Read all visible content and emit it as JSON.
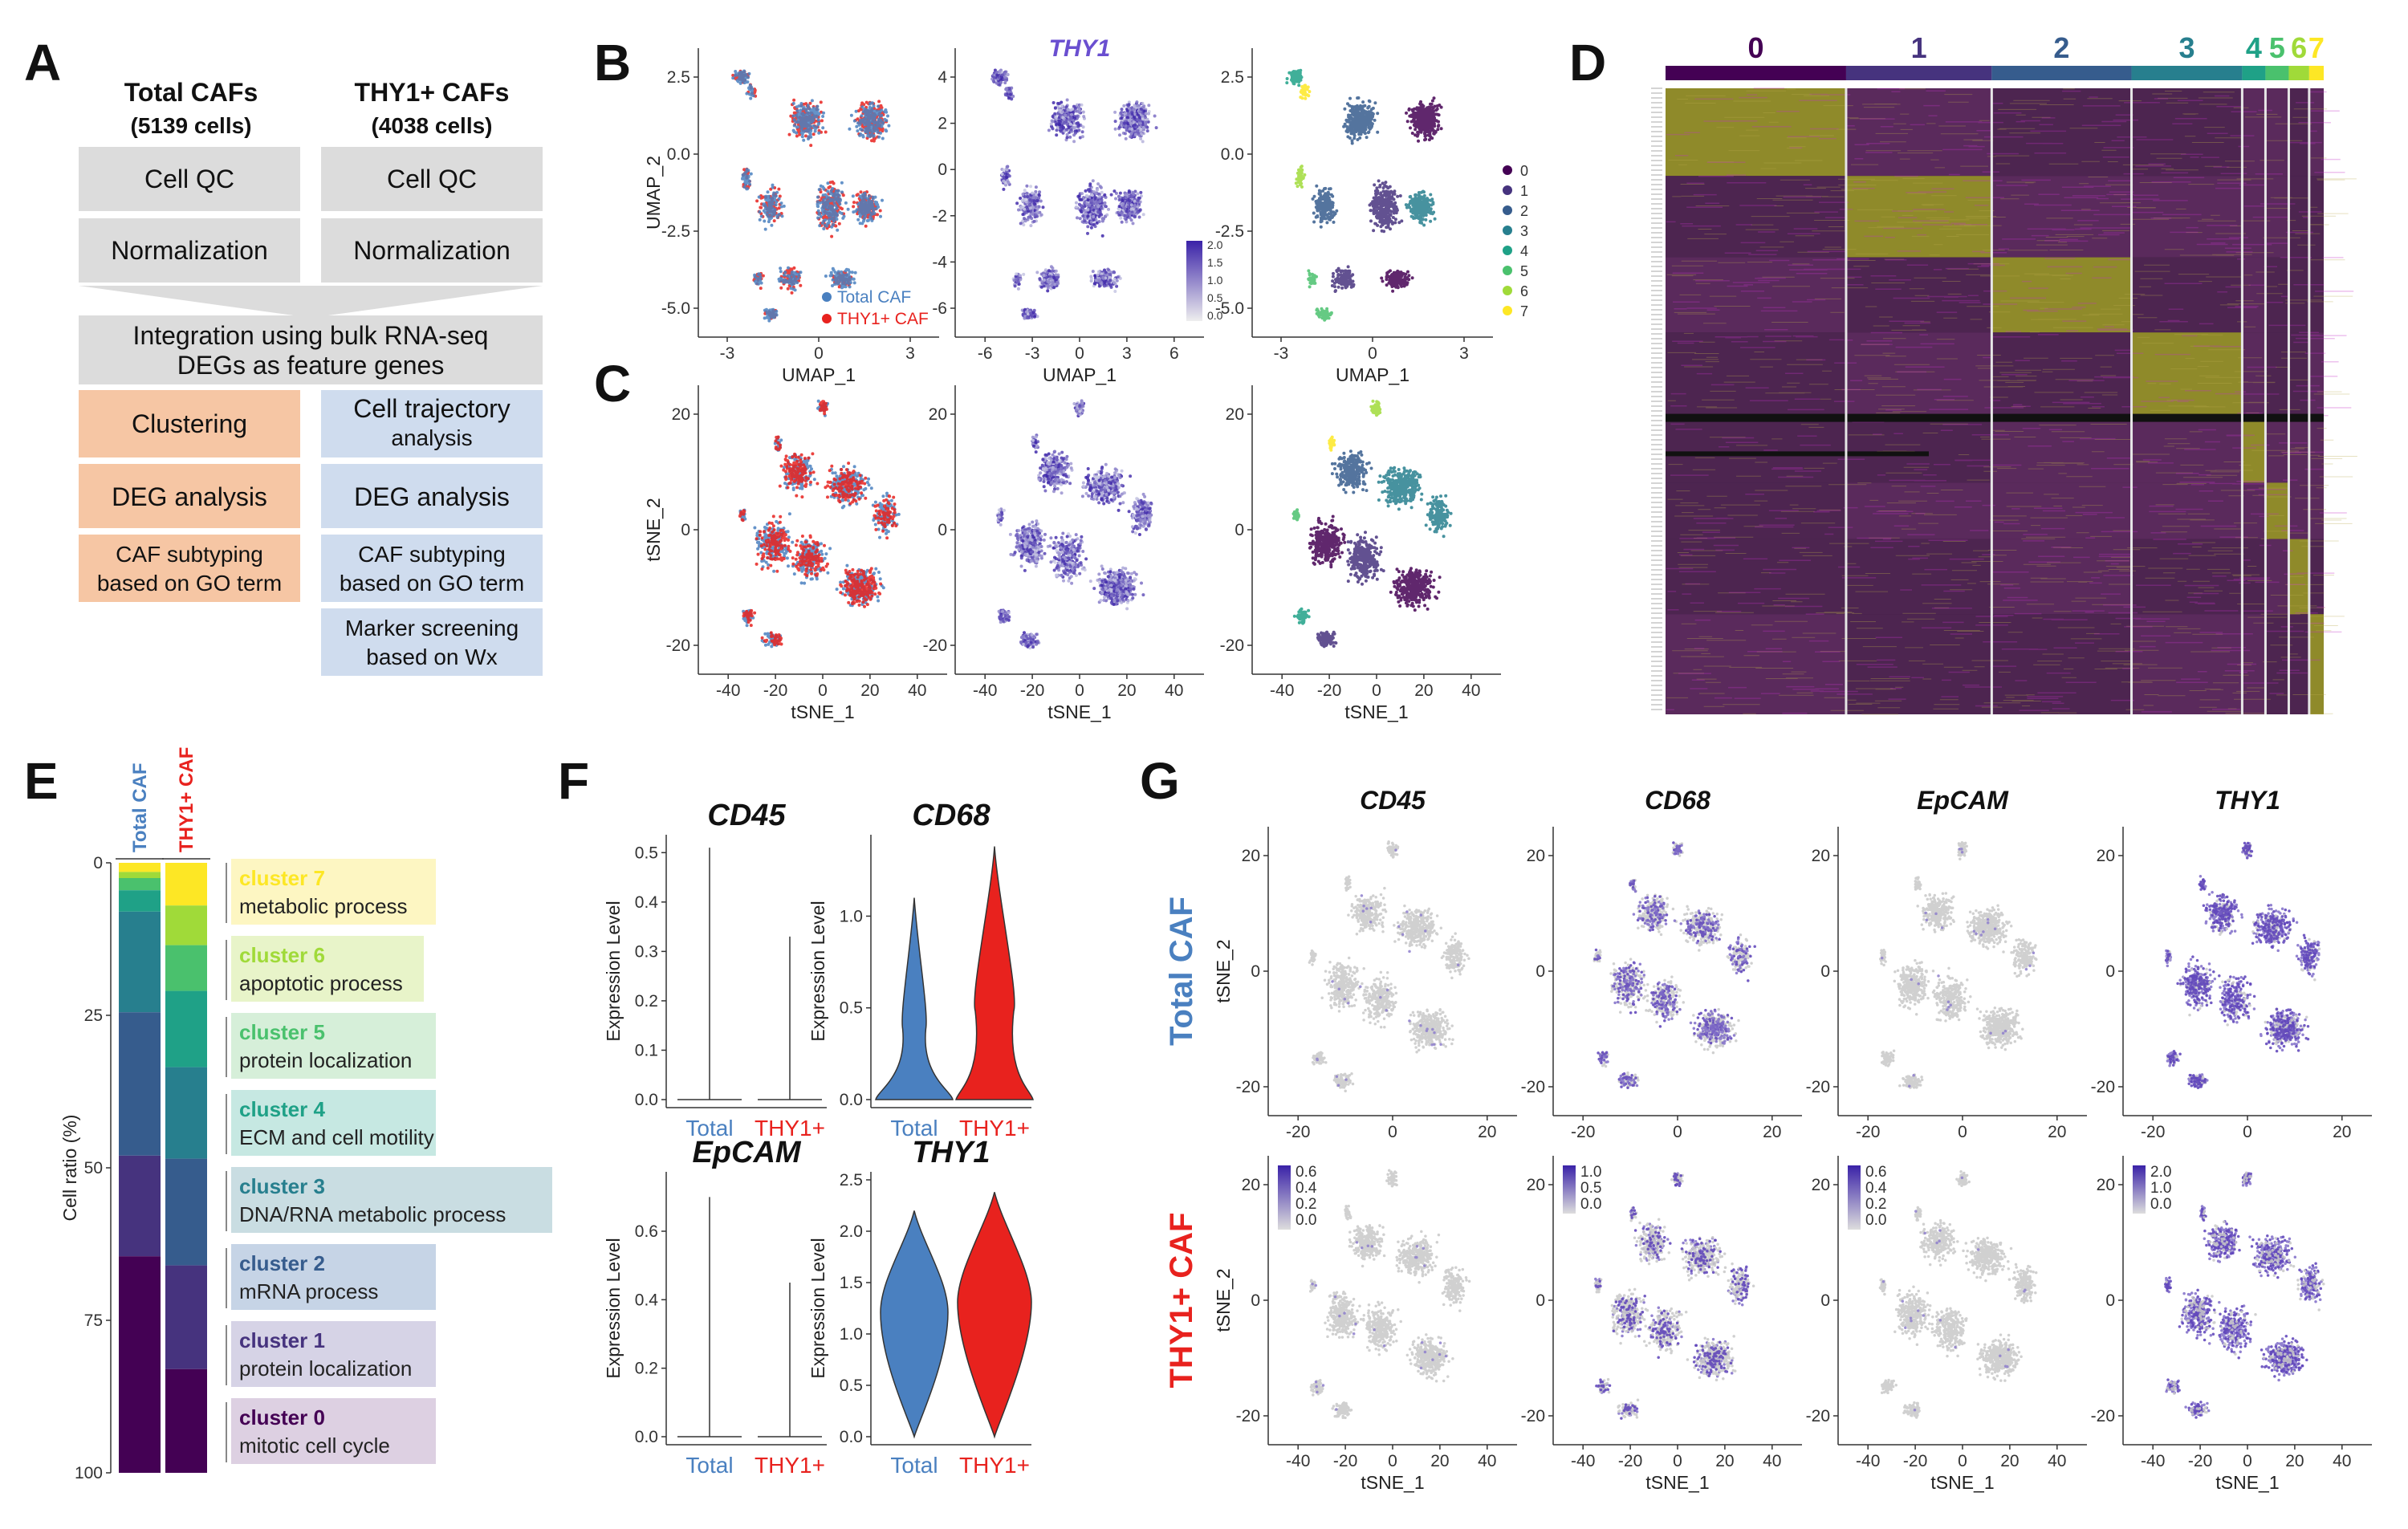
{
  "panel_labels": [
    "A",
    "B",
    "C",
    "D",
    "E",
    "F",
    "G"
  ],
  "workflow": {
    "col1_title": "Total CAFs",
    "col1_cells": "(5139 cells)",
    "col2_title": "THY1+ CAFs",
    "col2_cells": "(4038 cells)",
    "qc": "Cell QC",
    "norm": "Normalization",
    "integ1": "Integration using bulk RNA-seq",
    "integ2": "DEGs as feature genes",
    "clustering": "Clustering",
    "traj1": "Cell trajectory",
    "traj2": "analysis",
    "deg": "DEG analysis",
    "sub1": "CAF subtyping",
    "sub2": "based on GO term",
    "mark1": "Marker screening",
    "mark2": "based on Wx"
  },
  "colors": {
    "total": "#4a80c0",
    "thy1": "#e8221e",
    "feature_low": "#cfd0e6",
    "feature_high": "#3a22a8",
    "clusters": [
      "#440154",
      "#46337e",
      "#365c8d",
      "#277f8e",
      "#1fa187",
      "#4ac16d",
      "#a0da39",
      "#fde725"
    ],
    "orange_box": "#f6c6a4",
    "blue_box": "#cfdcee",
    "grey_box": "#dcdcdc"
  },
  "umap": {
    "xlabel": "UMAP_1",
    "ylabel": "UMAP_2",
    "gene_title": "THY1",
    "legend_total": "Total CAF",
    "legend_thy1": "THY1+ CAF",
    "b1_x": [
      "-3",
      "0",
      "3"
    ],
    "b1_y": [
      "2.5",
      "0.0",
      "-2.5",
      "-5.0"
    ],
    "b2_x": [
      "-6",
      "-3",
      "0",
      "3",
      "6"
    ],
    "b2_y": [
      "4",
      "2",
      "0",
      "-2",
      "-4",
      "-6"
    ],
    "b3_x": [
      "-3",
      "0",
      "3"
    ],
    "b3_y": [
      "2.5",
      "0.0",
      "-2.5",
      "-5.0"
    ],
    "b2_scale": [
      "2.0",
      "1.5",
      "1.0",
      "0.5",
      "0.0"
    ],
    "cluster_names": [
      "0",
      "1",
      "2",
      "3",
      "4",
      "5",
      "6",
      "7"
    ]
  },
  "tsne": {
    "xlabel": "tSNE_1",
    "ylabel": "tSNE_2",
    "x_ticks": [
      "-40",
      "-20",
      "0",
      "20",
      "40"
    ],
    "y_ticks": [
      "20",
      "0",
      "-20"
    ]
  },
  "heatmap": {
    "cluster_labels": [
      "0",
      "1",
      "2",
      "3",
      "4",
      "5",
      "6",
      "7"
    ]
  },
  "chart_data": [
    {
      "type": "bar",
      "title": "",
      "xlabel": "",
      "ylabel": "Cell ratio (%)",
      "ylim": [
        0,
        100
      ],
      "y_ticks": [
        "0",
        "25",
        "50",
        "75",
        "100"
      ],
      "categories": [
        "Total CAF",
        "THY1+ CAF"
      ],
      "series": [
        {
          "name": "cluster 0",
          "values": [
            35.5,
            17.0
          ]
        },
        {
          "name": "cluster 1",
          "values": [
            16.5,
            17.0
          ]
        },
        {
          "name": "cluster 2",
          "values": [
            23.5,
            17.5
          ]
        },
        {
          "name": "cluster 3",
          "values": [
            16.5,
            15.0
          ]
        },
        {
          "name": "cluster 4",
          "values": [
            3.5,
            12.5
          ]
        },
        {
          "name": "cluster 5",
          "values": [
            2.0,
            7.5
          ]
        },
        {
          "name": "cluster 6",
          "values": [
            1.0,
            6.5
          ]
        },
        {
          "name": "cluster 7",
          "values": [
            1.5,
            7.0
          ]
        }
      ],
      "annotations": [
        {
          "cluster": "cluster 7",
          "term": "metabolic process"
        },
        {
          "cluster": "cluster 6",
          "term": "apoptotic process"
        },
        {
          "cluster": "cluster 5",
          "term": "protein localization"
        },
        {
          "cluster": "cluster 4",
          "term": "ECM and cell motility"
        },
        {
          "cluster": "cluster 3",
          "term": "DNA/RNA metabolic process"
        },
        {
          "cluster": "cluster 2",
          "term": "mRNA  process"
        },
        {
          "cluster": "cluster 1",
          "term": "protein localization"
        },
        {
          "cluster": "cluster 0",
          "term": "mitotic cell cycle"
        }
      ]
    },
    {
      "type": "violin",
      "ylabel": "Expression Level",
      "categories": [
        "Total",
        "THY1+"
      ],
      "plots": [
        {
          "gene": "CD45",
          "ylim": [
            0,
            0.52
          ],
          "y_ticks": [
            "0.0",
            "0.1",
            "0.2",
            "0.3",
            "0.4",
            "0.5"
          ],
          "max": [
            0.51,
            0.33
          ]
        },
        {
          "gene": "CD68",
          "ylim": [
            0,
            1.4
          ],
          "y_ticks": [
            "0.0",
            "0.5",
            "1.0"
          ],
          "max": [
            1.1,
            1.38
          ]
        },
        {
          "gene": "EpCAM",
          "ylim": [
            0,
            0.75
          ],
          "y_ticks": [
            "0.0",
            "0.2",
            "0.4",
            "0.6"
          ],
          "max": [
            0.7,
            0.45
          ]
        },
        {
          "gene": "THY1",
          "ylim": [
            0,
            2.5
          ],
          "y_ticks": [
            "0.0",
            "0.5",
            "1.0",
            "1.5",
            "2.0",
            "2.5"
          ],
          "max": [
            2.2,
            2.38
          ]
        }
      ]
    }
  ],
  "feature_plots": {
    "genes": [
      "CD45",
      "CD68",
      "EpCAM",
      "THY1"
    ],
    "row_labels": [
      "Total CAF",
      "THY1+ CAF"
    ],
    "scales": [
      [
        "0.6",
        "0.4",
        "0.2",
        "0.0"
      ],
      [
        "1.0",
        "0.5",
        "0.0"
      ],
      [
        "0.6",
        "0.4",
        "0.2",
        "0.0"
      ],
      [
        "2.0",
        "1.0",
        "0.0"
      ]
    ],
    "x_ticks": [
      "-20",
      "0",
      "20"
    ],
    "x_ticks_bottom": [
      "-40",
      "-20",
      "0",
      "20",
      "40"
    ],
    "y_ticks": [
      "20",
      "0",
      "-20"
    ]
  }
}
